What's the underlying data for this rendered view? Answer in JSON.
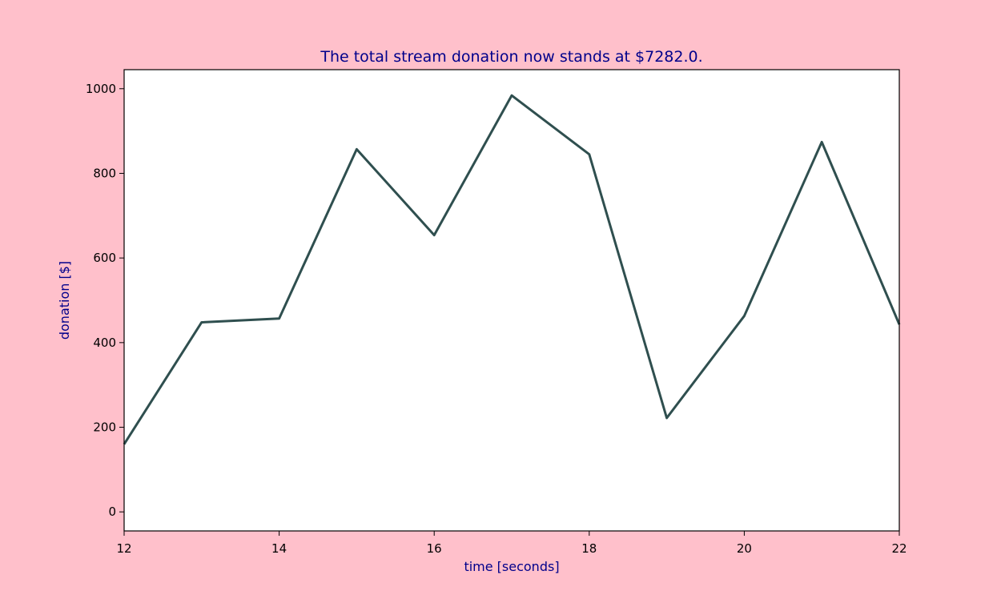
{
  "colors": {
    "figure_background": "#ffc0cb",
    "plot_background": "#ffffff",
    "line": "#2f4f4f",
    "title_and_axis_text": "#00008b",
    "tick_text": "#000000"
  },
  "chart_data": {
    "type": "line",
    "title": "The total stream donation now stands at $7282.0.",
    "xlabel": "time [seconds]",
    "ylabel": "donation [$]",
    "xlim": [
      12,
      22
    ],
    "ylim": [
      -45,
      1045
    ],
    "xticks": [
      12,
      14,
      16,
      18,
      20,
      22
    ],
    "yticks": [
      0,
      200,
      400,
      600,
      800,
      1000
    ],
    "grid": false,
    "legend": "none",
    "series": [
      {
        "x": [
          12,
          13,
          14,
          15,
          16,
          17,
          18,
          19,
          20,
          21,
          22
        ],
        "values": [
          160,
          448,
          457,
          857,
          654,
          984,
          845,
          222,
          463,
          874,
          443
        ]
      }
    ]
  }
}
